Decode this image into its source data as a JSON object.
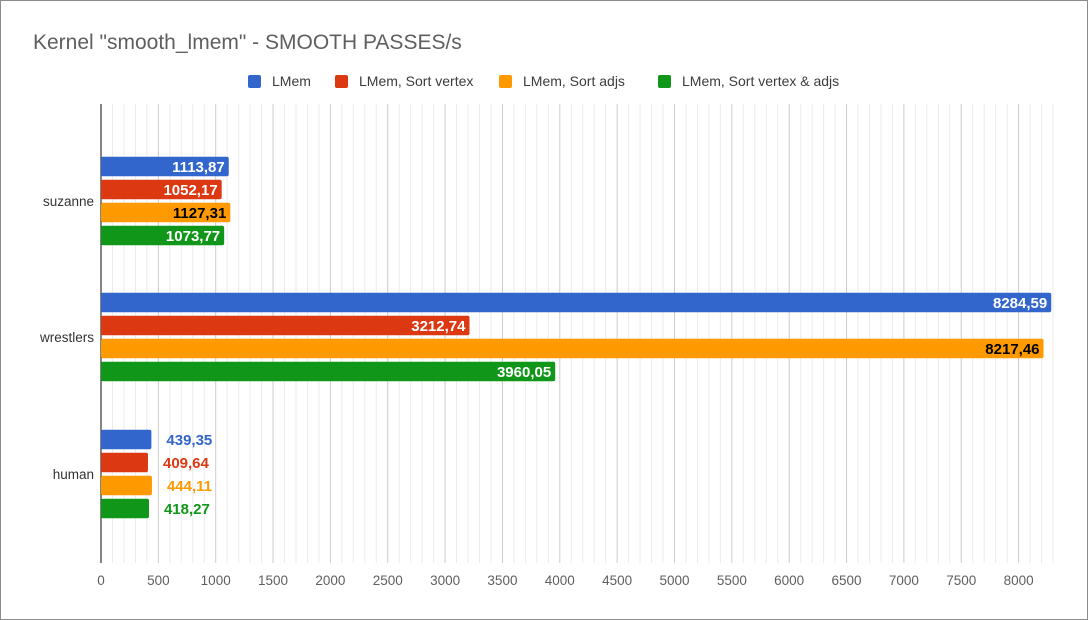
{
  "chart_data": {
    "type": "bar",
    "orientation": "horizontal",
    "title": "Kernel \"smooth_lmem\" - SMOOTH PASSES/s",
    "xlabel": "",
    "ylabel": "",
    "categories": [
      "suzanne",
      "wrestlers",
      "human"
    ],
    "series": [
      {
        "name": "LMem",
        "color": "#3366cc",
        "values": [
          1113.87,
          8284.59,
          439.35
        ],
        "labels": [
          "1113,87",
          "8284,59",
          "439,35"
        ]
      },
      {
        "name": "LMem, Sort vertex",
        "color": "#dc3912",
        "values": [
          1052.17,
          3212.74,
          409.64
        ],
        "labels": [
          "1052,17",
          "3212,74",
          "409,64"
        ]
      },
      {
        "name": "LMem, Sort adjs",
        "color": "#ff9900",
        "values": [
          1127.31,
          8217.46,
          444.11
        ],
        "labels": [
          "1127,31",
          "8217,46",
          "444,11"
        ]
      },
      {
        "name": "LMem, Sort vertex & adjs",
        "color": "#109618",
        "values": [
          1073.77,
          3960.05,
          418.27
        ],
        "labels": [
          "1073,77",
          "3960,05",
          "418,27"
        ]
      }
    ],
    "xlim": [
      0,
      8300
    ],
    "xticks": [
      "0",
      "500",
      "1000",
      "1500",
      "2000",
      "2500",
      "3000",
      "3500",
      "4000",
      "4500",
      "5000",
      "5500",
      "6000",
      "6500",
      "7000",
      "7500",
      "8000"
    ],
    "grid": true,
    "legend_position": "top"
  }
}
